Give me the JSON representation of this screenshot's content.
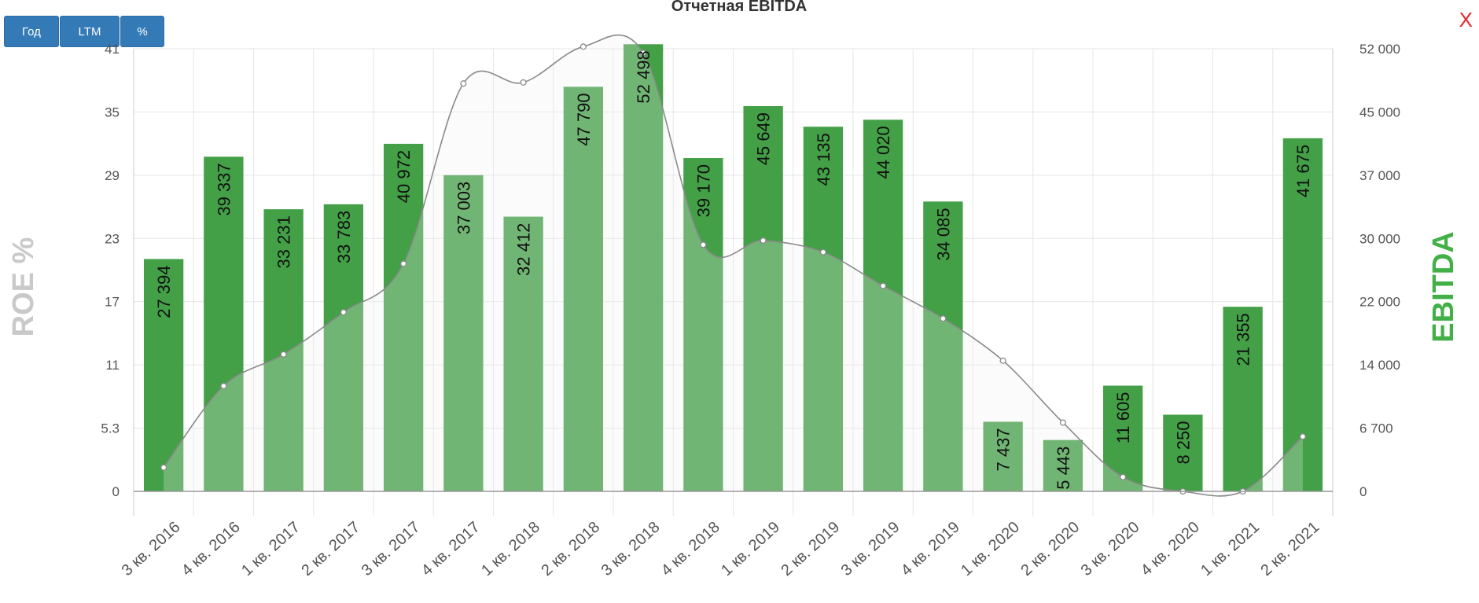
{
  "controls": {
    "btn_year": "Год",
    "btn_ltm": "LTM",
    "btn_pct": "%",
    "close": "X"
  },
  "colors": {
    "bar": "#43a047",
    "area": "#f2f2f2",
    "line": "#8a8a8a",
    "left_axis_title": "#c9c9c9",
    "right_axis_title": "#43b047",
    "button": "#337ab7",
    "close": "#e8262a"
  },
  "chart_data": {
    "type": "bar",
    "title": "Отчетная EBITDA",
    "categories": [
      "3 кв. 2016",
      "4 кв. 2016",
      "1 кв. 2017",
      "2 кв. 2017",
      "3 кв. 2017",
      "4 кв. 2017",
      "1 кв. 2018",
      "2 кв. 2018",
      "3 кв. 2018",
      "4 кв. 2018",
      "1 кв. 2019",
      "2 кв. 2019",
      "3 кв. 2019",
      "4 кв. 2019",
      "1 кв. 2020",
      "2 кв. 2020",
      "3 кв. 2020",
      "4 кв. 2020",
      "1 кв. 2021",
      "2 кв. 2021"
    ],
    "series": [
      {
        "axis": "right",
        "chart": "bar",
        "values": [
          27394,
          39337,
          33231,
          33783,
          40972,
          37003,
          32412,
          47790,
          52498,
          39170,
          45649,
          43135,
          44020,
          34085,
          7437,
          5443,
          11605,
          8250,
          21355,
          41675
        ],
        "labels": [
          "27 394",
          "39 337",
          "33 231",
          "33 783",
          "40 972",
          "37 003",
          "32 412",
          "47 790",
          "52 498",
          "39 170",
          "45 649",
          "43 135",
          "44 020",
          "34 085",
          "7 437",
          "5 443",
          "11 605",
          "8 250",
          "21 355",
          "41 675"
        ]
      },
      {
        "axis": "left",
        "chart": "area",
        "values": [
          2,
          9.1,
          12,
          16,
          20.6,
          37.7,
          37.8,
          41.2,
          40.6,
          22.4,
          22.8,
          21.7,
          18.5,
          15.4,
          11.4,
          5.8,
          1.2,
          -2.3,
          -1.4,
          4.6
        ]
      }
    ],
    "left_axis": {
      "title": "ROE %",
      "ticks": [
        0,
        5.3,
        11,
        17,
        23,
        29,
        35,
        41
      ],
      "tick_labels": [
        "0",
        "5.3",
        "11",
        "17",
        "23",
        "29",
        "35",
        "41"
      ]
    },
    "right_axis": {
      "title": "EBITDA",
      "ticks": [
        0,
        6700,
        14000,
        22000,
        30000,
        37000,
        45000,
        52000
      ],
      "tick_labels": [
        "0",
        "6 700",
        "14 000",
        "22 000",
        "30 000",
        "37 000",
        "45 000",
        "52 000"
      ]
    },
    "grid": true
  }
}
